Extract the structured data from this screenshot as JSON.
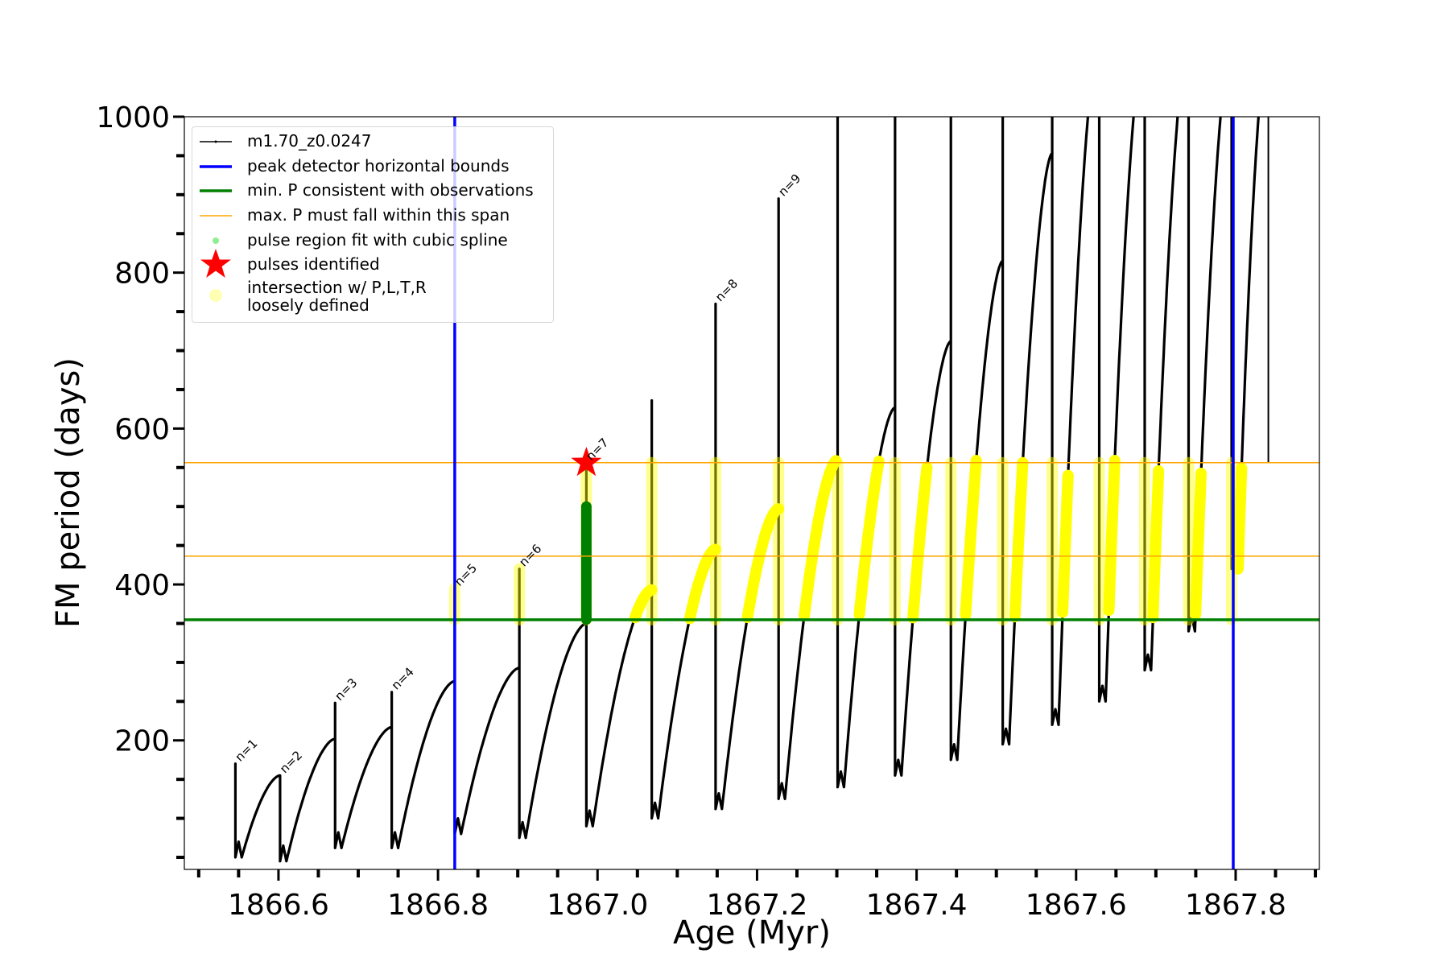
{
  "chart_data": {
    "type": "line",
    "xlabel": "Age (Myr)",
    "ylabel": "FM period (days)",
    "xlim": [
      1866.482,
      1867.905
    ],
    "ylim": [
      34.5,
      1000
    ],
    "xticks": [
      "1866.6",
      "1866.8",
      "1867.0",
      "1867.2",
      "1867.4",
      "1867.6",
      "1867.8"
    ],
    "xtick_values": [
      1866.6,
      1866.8,
      1867.0,
      1867.2,
      1867.4,
      1867.6,
      1867.8
    ],
    "yticks": [
      "200",
      "400",
      "600",
      "800",
      "1000"
    ],
    "ytick_values": [
      200,
      400,
      600,
      800,
      1000
    ],
    "grid": false,
    "legend_placement": "top-left",
    "series_name": "m1.70_z0.0247",
    "curve_start": {
      "age": 1866.546,
      "period": 140
    },
    "pulses": [
      {
        "age": 1866.546,
        "peak": 140,
        "spike": 170,
        "min": 50,
        "label": "n=1"
      },
      {
        "age": 1866.602,
        "peak": 155,
        "spike": 155,
        "min": 45,
        "label": "n=2"
      },
      {
        "age": 1866.671,
        "peak": 202,
        "spike": 248,
        "min": 62,
        "label": "n=3"
      },
      {
        "age": 1866.742,
        "peak": 217,
        "spike": 262,
        "min": 62,
        "label": "n=4"
      },
      {
        "age": 1866.821,
        "peak": 276,
        "spike": 395,
        "min": 80,
        "label": "n=5"
      },
      {
        "age": 1866.902,
        "peak": 293,
        "spike": 420,
        "min": 75,
        "label": "n=6"
      },
      {
        "age": 1866.986,
        "peak": 350,
        "spike": 556,
        "min": 90,
        "label": "n=7"
      },
      {
        "age": 1867.068,
        "peak": 393,
        "spike": 636,
        "min": 100,
        "label": ""
      },
      {
        "age": 1867.148,
        "peak": 445,
        "spike": 760,
        "min": 112,
        "label": "n=8"
      },
      {
        "age": 1867.227,
        "peak": 497,
        "spike": 895,
        "min": 125,
        "label": "n=9"
      },
      {
        "age": 1867.301,
        "peak": 560,
        "spike": 1000,
        "min": 140,
        "label": ""
      },
      {
        "age": 1867.373,
        "peak": 627,
        "spike": 1000,
        "min": 155,
        "label": ""
      },
      {
        "age": 1867.443,
        "peak": 712,
        "spike": 1000,
        "min": 175,
        "label": ""
      },
      {
        "age": 1867.508,
        "peak": 815,
        "spike": 1000,
        "min": 195,
        "label": ""
      },
      {
        "age": 1867.57,
        "peak": 953,
        "spike": 1000,
        "min": 220,
        "label": ""
      },
      {
        "age": 1867.629,
        "peak": 1100,
        "spike": 1000,
        "min": 250,
        "label": ""
      },
      {
        "age": 1867.686,
        "peak": 1100,
        "spike": 1000,
        "min": 290,
        "label": ""
      },
      {
        "age": 1867.741,
        "peak": 1100,
        "spike": 1000,
        "min": 340,
        "label": ""
      },
      {
        "age": 1867.795,
        "peak": 1100,
        "spike": 1000,
        "min": 420,
        "label": ""
      }
    ],
    "curve_end": {
      "age": 1867.841,
      "from": 556,
      "to": 1000
    },
    "peak_detector_bounds": [
      1866.821,
      1867.797
    ],
    "min_period": 354.7,
    "max_period_span": [
      436.3,
      556.2
    ],
    "pulse_identified": {
      "age": 1866.986,
      "period": 556
    },
    "spline_fit_range": [
      355,
      500
    ],
    "legend": [
      "m1.70_z0.0247",
      "peak detector horizontal bounds",
      "min. P consistent with observations",
      "max. P must fall within this span",
      "pulse region fit with cubic spline",
      "pulses identified",
      "intersection w/ P,L,T,R\nloosely defined"
    ],
    "legend_lines": [
      "intersection w/ P,L,T,R",
      "loosely defined"
    ],
    "colors": {
      "curve": "#000000",
      "bounds": "#0000ff",
      "min_p": "#008000",
      "max_p": "#ffa500",
      "spline": "#90ee90",
      "star": "#ff0000",
      "intersection": "#ffff00"
    }
  }
}
